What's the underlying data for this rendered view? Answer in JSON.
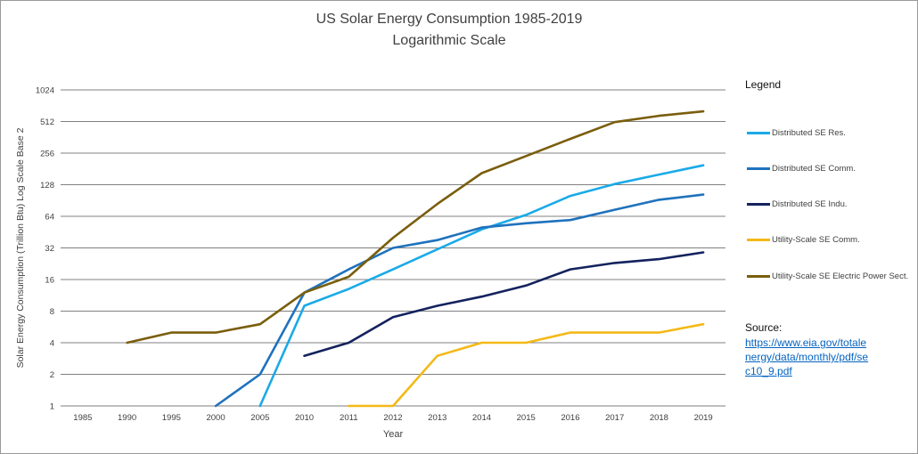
{
  "chart_data": {
    "type": "line",
    "title": "US Solar Energy Consumption 1985-2019",
    "subtitle": "Logarithmic Scale",
    "xlabel": "Year",
    "ylabel": "Solar Energy Consumption (Trillion Btu) Log Scale Base 2",
    "y_scale": "log2",
    "ylim": [
      1,
      1024
    ],
    "y_ticks": [
      1,
      2,
      4,
      8,
      16,
      32,
      64,
      128,
      256,
      512,
      1024
    ],
    "categories": [
      "1985",
      "1990",
      "1995",
      "2000",
      "2005",
      "2010",
      "2011",
      "2012",
      "2013",
      "2014",
      "2015",
      "2016",
      "2017",
      "2018",
      "2019"
    ],
    "grid": "horizontal",
    "legend_position": "right",
    "legend_title": "Legend",
    "series": [
      {
        "name": "Distributed SE Res.",
        "color": "#1aaae8",
        "values": [
          null,
          null,
          null,
          null,
          1,
          9,
          13,
          20,
          31,
          48,
          66,
          100,
          130,
          160,
          196
        ]
      },
      {
        "name": "Distributed SE Comm.",
        "color": "#1f72bd",
        "values": [
          null,
          null,
          null,
          1,
          2,
          12,
          20,
          32,
          38,
          50,
          55,
          59,
          74,
          92,
          103
        ]
      },
      {
        "name": "Distributed SE Indu.",
        "color": "#14225e",
        "values": [
          null,
          null,
          null,
          null,
          null,
          3,
          4,
          7,
          9,
          11,
          14,
          20,
          23,
          25,
          29
        ]
      },
      {
        "name": "Utility-Scale SE Comm.",
        "color": "#f4b918",
        "values": [
          null,
          null,
          null,
          null,
          null,
          null,
          1,
          1,
          3,
          4,
          4,
          5,
          5,
          5,
          6
        ]
      },
      {
        "name": "Utility-Scale SE Electric Power Sect.",
        "color": "#7a5e0c",
        "values": [
          null,
          4,
          5,
          5,
          6,
          12,
          17,
          40,
          84,
          165,
          240,
          350,
          505,
          580,
          640
        ]
      }
    ]
  },
  "source": {
    "label": "Source:",
    "url": "https://www.eia.gov/totalenergy/data/monthly/pdf/sec10_9.pdf"
  }
}
